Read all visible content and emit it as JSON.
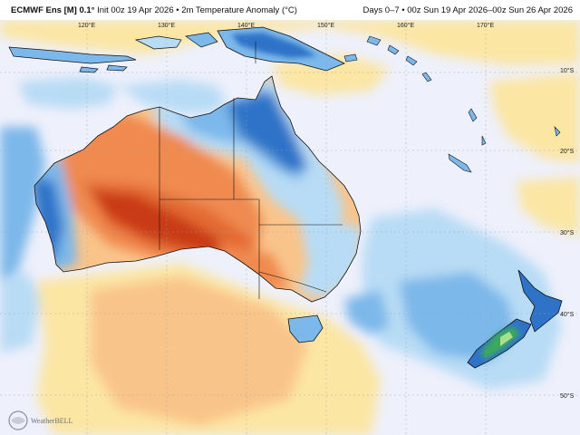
{
  "header": {
    "model": "ECMWF Ens [M] 0.1°",
    "init": "Init 00z 19 Apr 2026",
    "variable": "2m Temperature Anomaly (°C)",
    "valid": "Days 0–7 • 00z Sun 19 Apr 2026–00z Sun 26 Apr 2026"
  },
  "lat_labels": [
    "10°S",
    "20°S",
    "30°S",
    "40°S",
    "50°S"
  ],
  "lon_labels": [
    "120°E",
    "130°E",
    "140°E",
    "150°E",
    "160°E",
    "170°E"
  ],
  "logo": {
    "text": "WEATHERBELL",
    "lettering": "WeatherBELL"
  },
  "colors": {
    "ocean_neutral": "#eef0fb",
    "strong_warm": "#c93a12",
    "warm": "#f08a50",
    "mild_warm": "#f9c48a",
    "slight_warm": "#fbe6a4",
    "slight_cool": "#b8dcf5",
    "cool": "#7cb8ea",
    "strong_cool": "#2f73c8",
    "cold_core": "#3aaa5a"
  }
}
